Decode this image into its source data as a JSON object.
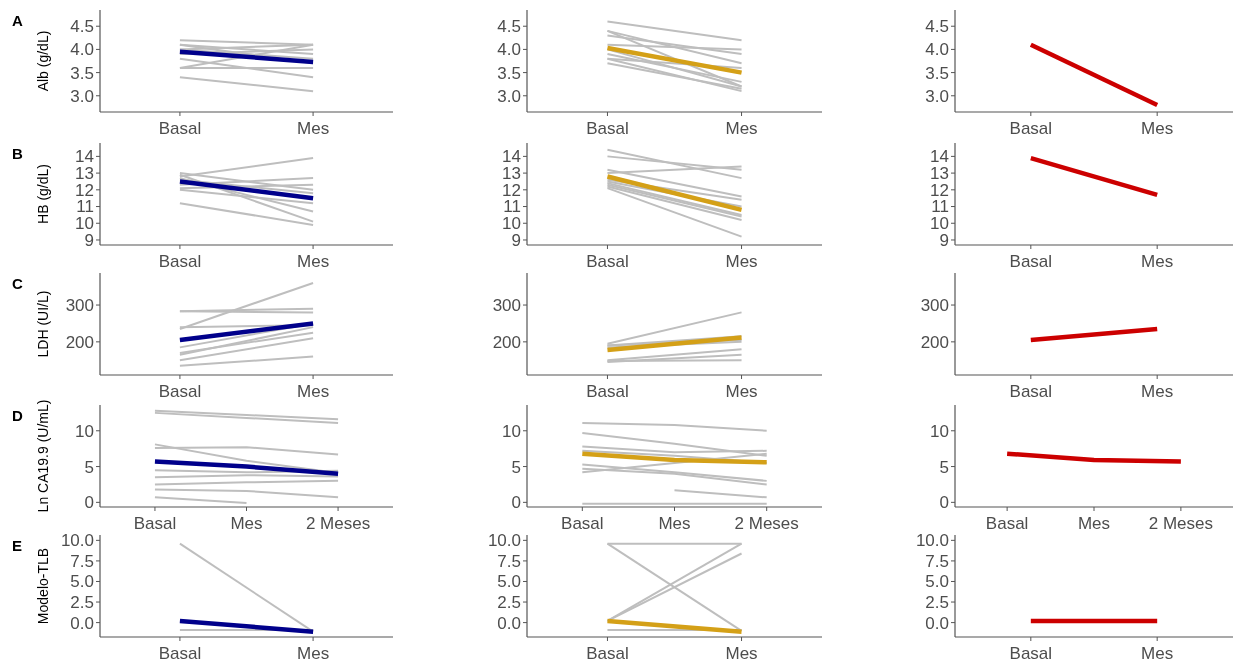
{
  "chart_data": [
    {
      "type": "line",
      "title": "A",
      "ylabel": "Alb (g/dL)",
      "categories": [
        "Basal",
        "Mes"
      ],
      "ylim": [
        2.65,
        4.85
      ],
      "yticks": [
        {
          "value": 3,
          "label": "3.0"
        },
        3.5,
        {
          "value": 4,
          "label": "4.0"
        },
        4.5
      ],
      "series": [
        {
          "color": "#bebebe",
          "values": [
            4.2,
            4.1
          ]
        },
        {
          "color": "#bebebe",
          "values": [
            4.1,
            3.9
          ]
        },
        {
          "color": "#bebebe",
          "values": [
            4.0,
            4.1
          ]
        },
        {
          "color": "#bebebe",
          "values": [
            4.0,
            3.8
          ]
        },
        {
          "color": "#bebebe",
          "values": [
            3.9,
            4.0
          ]
        },
        {
          "color": "#bebebe",
          "values": [
            3.8,
            3.4
          ]
        },
        {
          "color": "#bebebe",
          "values": [
            3.6,
            3.6
          ]
        },
        {
          "color": "#bebebe",
          "values": [
            3.6,
            4.1
          ]
        },
        {
          "color": "#bebebe",
          "values": [
            3.4,
            3.1
          ]
        },
        {
          "color": "#bebebe",
          "values": [
            4.1,
            3.7
          ]
        },
        {
          "color": "#00008b",
          "values": [
            3.95,
            3.73
          ]
        }
      ]
    },
    {
      "type": "line",
      "categories": [
        "Basal",
        "Mes"
      ],
      "ylim": [
        2.65,
        4.85
      ],
      "yticks": [
        {
          "value": 3,
          "label": "3.0"
        },
        3.5,
        {
          "value": 4,
          "label": "4.0"
        },
        4.5
      ],
      "series": [
        {
          "color": "#bebebe",
          "values": [
            4.6,
            4.2
          ]
        },
        {
          "color": "#bebebe",
          "values": [
            4.4,
            3.7
          ]
        },
        {
          "color": "#bebebe",
          "values": [
            4.4,
            3.2
          ]
        },
        {
          "color": "#bebebe",
          "values": [
            4.3,
            3.9
          ]
        },
        {
          "color": "#bebebe",
          "values": [
            4.1,
            4.0
          ]
        },
        {
          "color": "#bebebe",
          "values": [
            3.9,
            3.3
          ]
        },
        {
          "color": "#bebebe",
          "values": [
            3.8,
            3.1
          ]
        },
        {
          "color": "#bebebe",
          "values": [
            3.7,
            3.15
          ]
        },
        {
          "color": "#bebebe",
          "values": [
            3.8,
            3.6
          ]
        },
        {
          "color": "#bebebe",
          "values": [
            4.0,
            3.2
          ]
        },
        {
          "color": "#d4a017",
          "values": [
            4.03,
            3.5
          ]
        }
      ]
    },
    {
      "type": "line",
      "categories": [
        "Basal",
        "Mes"
      ],
      "ylim": [
        2.65,
        4.85
      ],
      "yticks": [
        {
          "value": 3,
          "label": "3.0"
        },
        3.5,
        {
          "value": 4,
          "label": "4.0"
        },
        4.5
      ],
      "series": [
        {
          "color": "#cc0000",
          "values": [
            4.1,
            2.8
          ]
        }
      ]
    },
    {
      "type": "line",
      "title": "B",
      "ylabel": "HB (g/dL)",
      "categories": [
        "Basal",
        "Mes"
      ],
      "ylim": [
        8.7,
        14.8
      ],
      "yticks": [
        9,
        10,
        11,
        12,
        13,
        14
      ],
      "series": [
        {
          "color": "#bebebe",
          "values": [
            13.0,
            12.0
          ]
        },
        {
          "color": "#bebebe",
          "values": [
            12.9,
            10.1
          ]
        },
        {
          "color": "#bebebe",
          "values": [
            12.8,
            13.9
          ]
        },
        {
          "color": "#bebebe",
          "values": [
            12.3,
            12.7
          ]
        },
        {
          "color": "#bebebe",
          "values": [
            12.1,
            12.3
          ]
        },
        {
          "color": "#bebebe",
          "values": [
            12.7,
            10.7
          ]
        },
        {
          "color": "#bebebe",
          "values": [
            11.2,
            9.9
          ]
        },
        {
          "color": "#bebebe",
          "values": [
            12.6,
            11.8
          ]
        },
        {
          "color": "#bebebe",
          "values": [
            12.0,
            11.2
          ]
        },
        {
          "color": "#00008b",
          "values": [
            12.5,
            11.5
          ]
        }
      ]
    },
    {
      "type": "line",
      "categories": [
        "Basal",
        "Mes"
      ],
      "ylim": [
        8.7,
        14.8
      ],
      "yticks": [
        9,
        10,
        11,
        12,
        13,
        14
      ],
      "series": [
        {
          "color": "#bebebe",
          "values": [
            14.4,
            12.7
          ]
        },
        {
          "color": "#bebebe",
          "values": [
            14.0,
            13.2
          ]
        },
        {
          "color": "#bebebe",
          "values": [
            13.0,
            13.4
          ]
        },
        {
          "color": "#bebebe",
          "values": [
            13.2,
            11.6
          ]
        },
        {
          "color": "#bebebe",
          "values": [
            12.5,
            11.0
          ]
        },
        {
          "color": "#bebebe",
          "values": [
            12.4,
            10.5
          ]
        },
        {
          "color": "#bebebe",
          "values": [
            12.2,
            10.2
          ]
        },
        {
          "color": "#bebebe",
          "values": [
            12.1,
            9.2
          ]
        },
        {
          "color": "#bebebe",
          "values": [
            12.6,
            11.4
          ]
        },
        {
          "color": "#bebebe",
          "values": [
            12.3,
            10.4
          ]
        },
        {
          "color": "#d4a017",
          "values": [
            12.8,
            10.8
          ]
        }
      ]
    },
    {
      "type": "line",
      "categories": [
        "Basal",
        "Mes"
      ],
      "ylim": [
        8.7,
        14.8
      ],
      "yticks": [
        9,
        10,
        11,
        12,
        13,
        14
      ],
      "series": [
        {
          "color": "#cc0000",
          "values": [
            13.9,
            11.7
          ]
        }
      ]
    },
    {
      "type": "line",
      "title": "C",
      "ylabel": "LDH (UI/L)",
      "categories": [
        "Basal",
        "Mes"
      ],
      "ylim": [
        110,
        387
      ],
      "yticks": [
        200,
        300
      ],
      "series": [
        {
          "color": "#bebebe",
          "values": [
            283,
            280
          ]
        },
        {
          "color": "#bebebe",
          "values": [
            283,
            290
          ]
        },
        {
          "color": "#bebebe",
          "values": [
            235,
            360
          ]
        },
        {
          "color": "#bebebe",
          "values": [
            240,
            245
          ]
        },
        {
          "color": "#bebebe",
          "values": [
            170,
            225
          ]
        },
        {
          "color": "#bebebe",
          "values": [
            185,
            250
          ]
        },
        {
          "color": "#bebebe",
          "values": [
            150,
            210
          ]
        },
        {
          "color": "#bebebe",
          "values": [
            135,
            160
          ]
        },
        {
          "color": "#bebebe",
          "values": [
            165,
            240
          ]
        },
        {
          "color": "#00008b",
          "values": [
            205,
            250
          ]
        }
      ]
    },
    {
      "type": "line",
      "categories": [
        "Basal",
        "Mes"
      ],
      "ylim": [
        110,
        387
      ],
      "yticks": [
        200,
        300
      ],
      "series": [
        {
          "color": "#bebebe",
          "values": [
            195,
            280
          ]
        },
        {
          "color": "#bebebe",
          "values": [
            190,
            215
          ]
        },
        {
          "color": "#bebebe",
          "values": [
            185,
            200
          ]
        },
        {
          "color": "#bebebe",
          "values": [
            150,
            180
          ]
        },
        {
          "color": "#bebebe",
          "values": [
            145,
            165
          ]
        },
        {
          "color": "#bebebe",
          "values": [
            148,
            150
          ]
        },
        {
          "color": "#bebebe",
          "values": [
            190,
            205
          ]
        },
        {
          "color": "#d4a017",
          "values": [
            178,
            212
          ]
        }
      ]
    },
    {
      "type": "line",
      "categories": [
        "Basal",
        "Mes"
      ],
      "ylim": [
        110,
        387
      ],
      "yticks": [
        200,
        300
      ],
      "series": [
        {
          "color": "#cc0000",
          "values": [
            205,
            235
          ]
        }
      ]
    },
    {
      "type": "line",
      "title": "D",
      "ylabel": "Ln CA19.9 (U/mL)",
      "categories": [
        "Basal",
        "Mes",
        "2 Meses"
      ],
      "ylim": [
        -0.65,
        13.6
      ],
      "yticks": [
        0,
        5,
        10
      ],
      "series": [
        {
          "color": "#bebebe",
          "values": [
            12.8,
            12.2,
            11.6
          ]
        },
        {
          "color": "#bebebe",
          "values": [
            12.5,
            11.8,
            11.1
          ]
        },
        {
          "color": "#bebebe",
          "values": [
            8.1,
            5.8,
            4.1
          ]
        },
        {
          "color": "#bebebe",
          "values": [
            7.6,
            7.7,
            6.7
          ]
        },
        {
          "color": "#bebebe",
          "values": [
            4.5,
            4.2,
            4.4
          ]
        },
        {
          "color": "#bebebe",
          "values": [
            3.5,
            3.8,
            3.6
          ]
        },
        {
          "color": "#bebebe",
          "values": [
            2.5,
            2.8,
            3.0
          ]
        },
        {
          "color": "#bebebe",
          "values": [
            1.8,
            1.6,
            0.7
          ]
        },
        {
          "color": "#bebebe",
          "values": [
            0.7,
            -0.1,
            null
          ]
        },
        {
          "color": "#00008b",
          "values": [
            5.7,
            5.0,
            4.0
          ]
        }
      ]
    },
    {
      "type": "line",
      "categories": [
        "Basal",
        "Mes",
        "2 Meses"
      ],
      "ylim": [
        -0.65,
        13.6
      ],
      "yticks": [
        0,
        5,
        10
      ],
      "series": [
        {
          "color": "#bebebe",
          "values": [
            11.1,
            10.8,
            10.0
          ]
        },
        {
          "color": "#bebebe",
          "values": [
            9.7,
            8.2,
            6.5
          ]
        },
        {
          "color": "#bebebe",
          "values": [
            7.8,
            7.0,
            7.2
          ]
        },
        {
          "color": "#bebebe",
          "values": [
            7.2,
            6.5,
            5.5
          ]
        },
        {
          "color": "#bebebe",
          "values": [
            5.3,
            4.2,
            3.0
          ]
        },
        {
          "color": "#bebebe",
          "values": [
            4.7,
            4.0,
            2.5
          ]
        },
        {
          "color": "#bebebe",
          "values": [
            4.2,
            5.5,
            6.8
          ]
        },
        {
          "color": "#bebebe",
          "values": [
            -0.2,
            -0.2,
            -0.2
          ]
        },
        {
          "color": "#bebebe",
          "values": [
            null,
            1.7,
            0.7
          ]
        },
        {
          "color": "#d4a017",
          "values": [
            6.8,
            5.9,
            5.6
          ]
        }
      ]
    },
    {
      "type": "line",
      "categories": [
        "Basal",
        "Mes",
        "2 Meses"
      ],
      "ylim": [
        -0.65,
        13.6
      ],
      "yticks": [
        0,
        5,
        10
      ],
      "series": [
        {
          "color": "#cc0000",
          "values": [
            6.8,
            5.9,
            5.7
          ]
        }
      ]
    },
    {
      "type": "line",
      "title": "E",
      "ylabel": "Modelo-TLB",
      "categories": [
        "Basal",
        "Mes"
      ],
      "ylim": [
        -1.75,
        10.65
      ],
      "yticks": [
        {
          "value": 0,
          "label": "0.0"
        },
        2.5,
        {
          "value": 5,
          "label": "5.0"
        },
        7.5,
        {
          "value": 10,
          "label": "10.0"
        }
      ],
      "series": [
        {
          "color": "#bebebe",
          "values": [
            9.6,
            -1.1
          ]
        },
        {
          "color": "#bebebe",
          "values": [
            -0.9,
            -0.9
          ]
        },
        {
          "color": "#00008b",
          "values": [
            0.2,
            -1.1
          ]
        }
      ]
    },
    {
      "type": "line",
      "categories": [
        "Basal",
        "Mes"
      ],
      "ylim": [
        -1.75,
        10.65
      ],
      "yticks": [
        {
          "value": 0,
          "label": "0.0"
        },
        2.5,
        {
          "value": 5,
          "label": "5.0"
        },
        7.5,
        {
          "value": 10,
          "label": "10.0"
        }
      ],
      "series": [
        {
          "color": "#bebebe",
          "values": [
            9.6,
            9.6
          ]
        },
        {
          "color": "#bebebe",
          "values": [
            9.6,
            -1.0
          ]
        },
        {
          "color": "#bebebe",
          "values": [
            0.2,
            9.6
          ]
        },
        {
          "color": "#bebebe",
          "values": [
            0.2,
            8.4
          ]
        },
        {
          "color": "#bebebe",
          "values": [
            -0.9,
            -0.9
          ]
        },
        {
          "color": "#d4a017",
          "values": [
            0.2,
            -1.1
          ]
        }
      ]
    },
    {
      "type": "line",
      "categories": [
        "Basal",
        "Mes"
      ],
      "ylim": [
        -1.75,
        10.65
      ],
      "yticks": [
        {
          "value": 0,
          "label": "0.0"
        },
        2.5,
        {
          "value": 5,
          "label": "5.0"
        },
        7.5,
        {
          "value": 10,
          "label": "10.0"
        }
      ],
      "series": [
        {
          "color": "#cc0000",
          "values": [
            0.2,
            0.2
          ]
        }
      ]
    }
  ]
}
